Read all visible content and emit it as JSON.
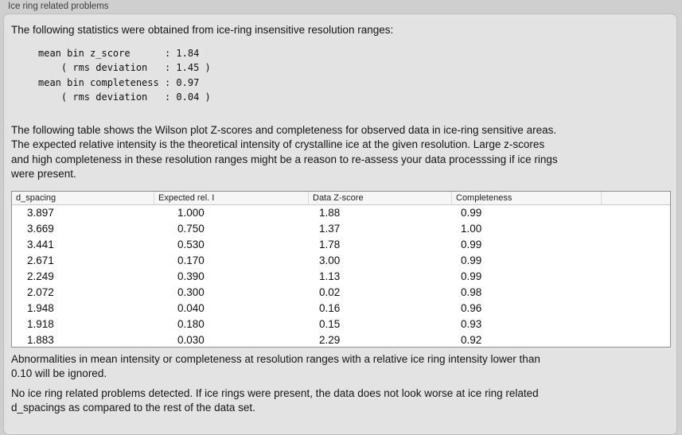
{
  "panel": {
    "title": "Ice ring related problems"
  },
  "intro": {
    "text": "The following statistics were obtained from ice-ring insensitive resolution ranges:"
  },
  "stats": {
    "text": "mean bin z_score      : 1.84\n    ( rms deviation   : 1.45 )\nmean bin completeness : 0.97\n    ( rms deviation   : 0.04 )",
    "mean_bin_z_score": 1.84,
    "z_score_rms_deviation": 1.45,
    "mean_bin_completeness": 0.97,
    "completeness_rms_deviation": 0.04
  },
  "description": {
    "text": "The following table shows the Wilson plot Z-scores and completeness for observed data in ice-ring sensitive areas.\nThe expected relative intensity is the theoretical intensity of crystalline ice at the given resolution. Large z-scores\nand high completeness in these resolution ranges might be a reason to re-assess your data processsing if ice rings\nwere present."
  },
  "table": {
    "headers": [
      "d_spacing",
      "Expected rel. I",
      "Data Z-score",
      "Completeness",
      ""
    ],
    "rows": [
      [
        "3.897",
        "1.000",
        "1.88",
        "0.99"
      ],
      [
        "3.669",
        "0.750",
        "1.37",
        "1.00"
      ],
      [
        "3.441",
        "0.530",
        "1.78",
        "0.99"
      ],
      [
        "2.671",
        "0.170",
        "3.00",
        "0.99"
      ],
      [
        "2.249",
        "0.390",
        "1.13",
        "0.99"
      ],
      [
        "2.072",
        "0.300",
        "0.02",
        "0.98"
      ],
      [
        "1.948",
        "0.040",
        "0.16",
        "0.96"
      ],
      [
        "1.918",
        "0.180",
        "0.15",
        "0.93"
      ],
      [
        "1.883",
        "0.030",
        "2.29",
        "0.92"
      ]
    ]
  },
  "notes": {
    "ignore": "Abnormalities in mean intensity or completeness at resolution ranges with a relative ice ring intensity lower than\n0.10 will be ignored.",
    "conclusion": "No ice ring related problems detected. If ice rings were present, the data does not look worse at ice ring related\nd_spacings as compared to the rest of the data set."
  },
  "colors": {
    "outer_background": "#cfcfcf",
    "panel_background": "#e3e3e3",
    "table_background": "#ffffff",
    "table_header_background": "#f6f6f6",
    "table_border": "#8f8f8f",
    "text": "#151515"
  }
}
